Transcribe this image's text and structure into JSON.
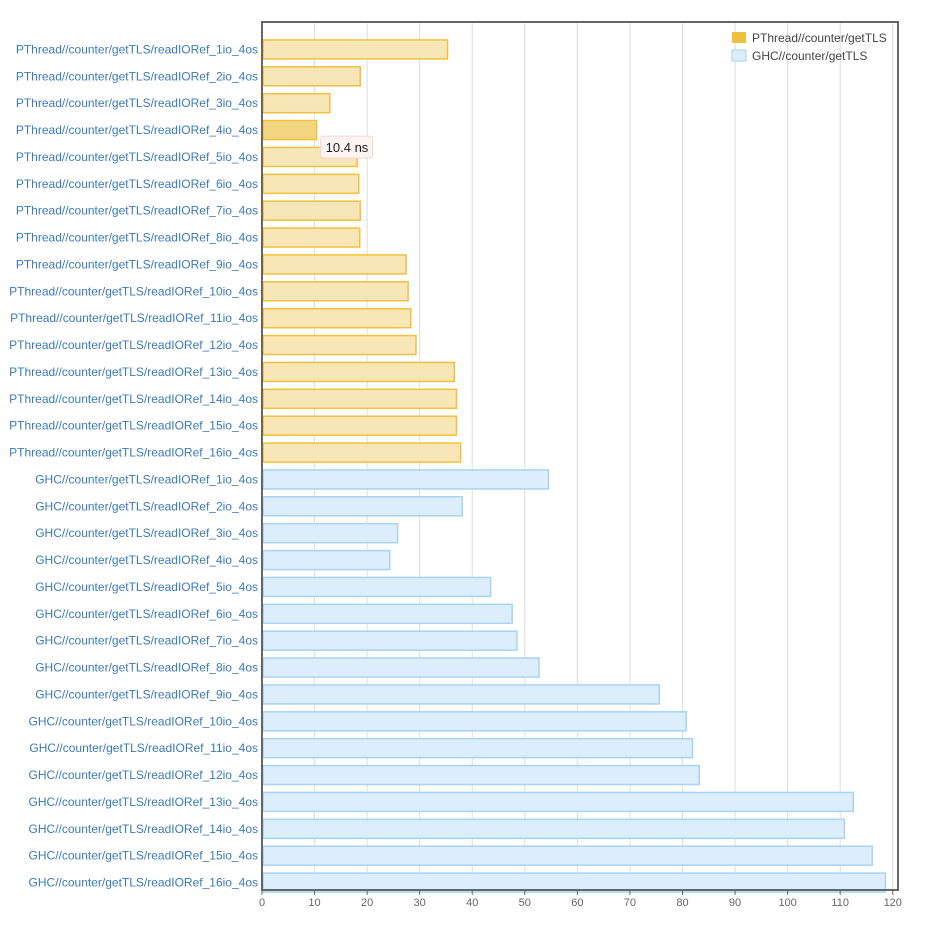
{
  "chart_data": {
    "type": "bar",
    "orientation": "horizontal",
    "categories": [
      "PThread//counter/getTLS/readIORef_1io_4os",
      "PThread//counter/getTLS/readIORef_2io_4os",
      "PThread//counter/getTLS/readIORef_3io_4os",
      "PThread//counter/getTLS/readIORef_4io_4os",
      "PThread//counter/getTLS/readIORef_5io_4os",
      "PThread//counter/getTLS/readIORef_6io_4os",
      "PThread//counter/getTLS/readIORef_7io_4os",
      "PThread//counter/getTLS/readIORef_8io_4os",
      "PThread//counter/getTLS/readIORef_9io_4os",
      "PThread//counter/getTLS/readIORef_10io_4os",
      "PThread//counter/getTLS/readIORef_11io_4os",
      "PThread//counter/getTLS/readIORef_12io_4os",
      "PThread//counter/getTLS/readIORef_13io_4os",
      "PThread//counter/getTLS/readIORef_14io_4os",
      "PThread//counter/getTLS/readIORef_15io_4os",
      "PThread//counter/getTLS/readIORef_16io_4os",
      "GHC//counter/getTLS/readIORef_1io_4os",
      "GHC//counter/getTLS/readIORef_2io_4os",
      "GHC//counter/getTLS/readIORef_3io_4os",
      "GHC//counter/getTLS/readIORef_4io_4os",
      "GHC//counter/getTLS/readIORef_5io_4os",
      "GHC//counter/getTLS/readIORef_6io_4os",
      "GHC//counter/getTLS/readIORef_7io_4os",
      "GHC//counter/getTLS/readIORef_8io_4os",
      "GHC//counter/getTLS/readIORef_9io_4os",
      "GHC//counter/getTLS/readIORef_10io_4os",
      "GHC//counter/getTLS/readIORef_11io_4os",
      "GHC//counter/getTLS/readIORef_12io_4os",
      "GHC//counter/getTLS/readIORef_13io_4os",
      "GHC//counter/getTLS/readIORef_14io_4os",
      "GHC//counter/getTLS/readIORef_15io_4os",
      "GHC//counter/getTLS/readIORef_16io_4os"
    ],
    "series": [
      {
        "name": "PThread//counter/getTLS",
        "color": "#f0c040",
        "fill": "#f8e6b6",
        "values": [
          35.3,
          18.7,
          12.9,
          10.4,
          18.1,
          18.4,
          18.7,
          18.6,
          27.4,
          27.8,
          28.3,
          29.3,
          36.6,
          37.0,
          37.0,
          37.8,
          null,
          null,
          null,
          null,
          null,
          null,
          null,
          null,
          null,
          null,
          null,
          null,
          null,
          null,
          null,
          null
        ]
      },
      {
        "name": "GHC//counter/getTLS",
        "color": "#a9d3f2",
        "fill": "#dcedfb",
        "values": [
          null,
          null,
          null,
          null,
          null,
          null,
          null,
          null,
          null,
          null,
          null,
          null,
          null,
          null,
          null,
          null,
          54.5,
          38.1,
          25.8,
          24.3,
          43.5,
          47.6,
          48.5,
          52.7,
          75.6,
          80.7,
          81.9,
          83.2,
          112.5,
          110.8,
          116.1,
          118.6
        ]
      }
    ],
    "highlighted_index": 3,
    "highlight_fill": "#f3d580",
    "tooltip": "10.4 ns",
    "title": "",
    "xlabel": "",
    "ylabel": "",
    "xlim": [
      0,
      121
    ],
    "xticks": [
      0,
      10,
      20,
      30,
      40,
      50,
      60,
      70,
      80,
      90,
      100,
      110,
      120
    ],
    "grid": true,
    "legend_position": "top-right"
  }
}
